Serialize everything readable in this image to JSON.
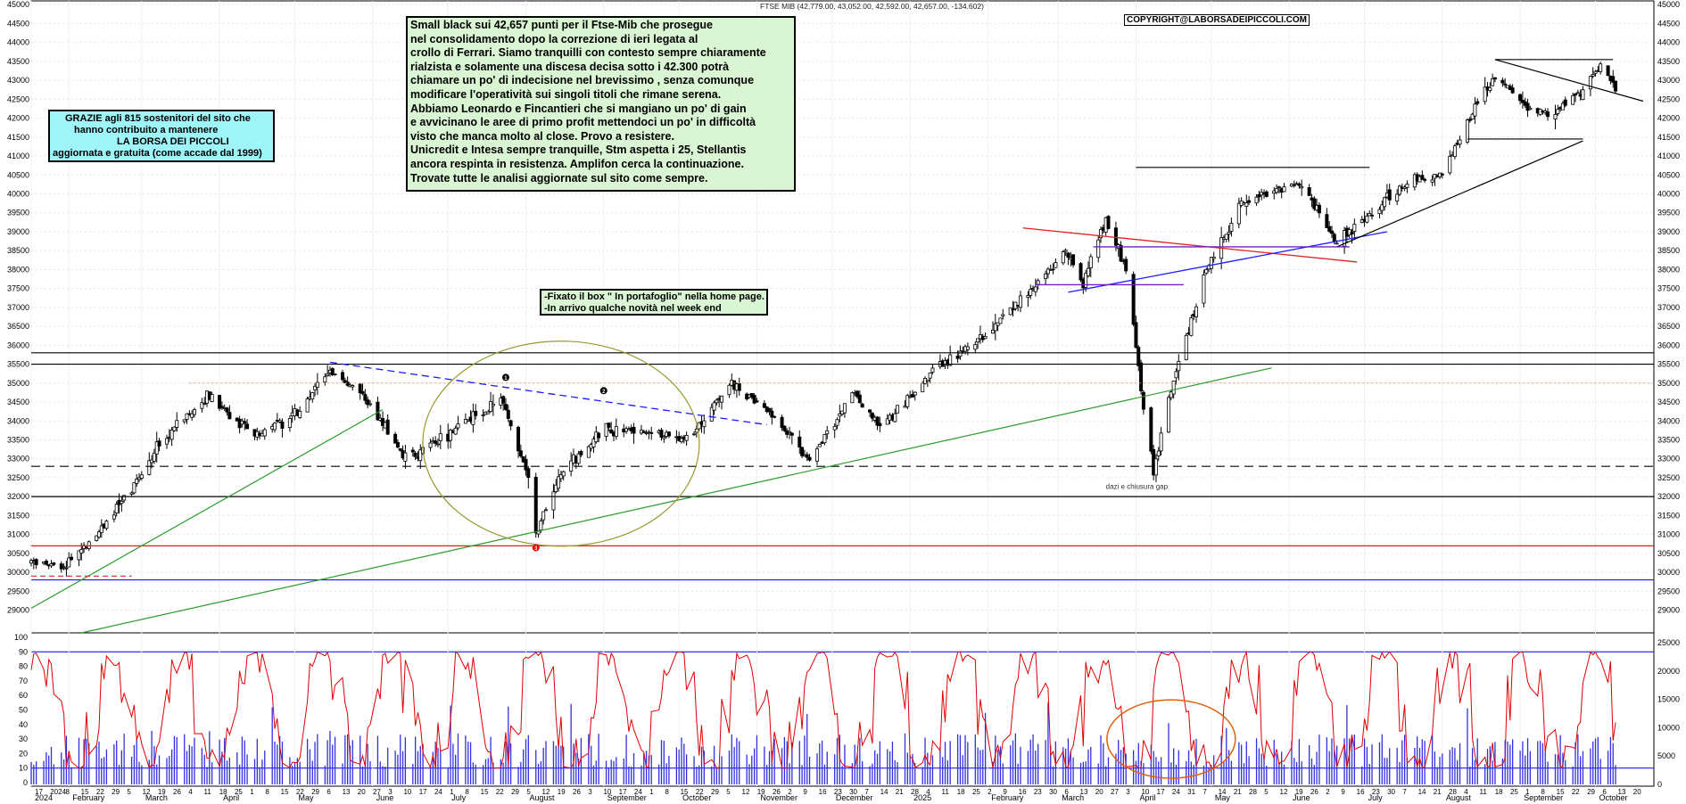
{
  "header": "FTSE MIB (42,779.00, 43,052.00, 42,592.00, 42,657.00, -134.602)",
  "copyright": "COPYRIGHT@LABORSADEIPICCOLI.COM",
  "note_main": [
    "Small black sui 42,657 punti per il Ftse-Mib che prosegue",
    "nel consolidamento dopo la correzione di ieri legata al",
    "crollo di Ferrari. Siamo tranquilli con contesto sempre chiaramente",
    "rialzista e solamente una discesa decisa sotto i 42.300 potrà",
    "chiamare un po' di indecisione nel brevissimo , senza comunque",
    "modificare l'operatività sui singoli titoli che rimane serena.",
    "Abbiamo Leonardo e Fincantieri che si mangiano un po' di gain",
    "e avvicinano le aree di primo profit mettendoci un po' in difficoltà",
    "visto che manca molto al close. Provo a resistere.",
    "Unicredit e Intesa sempre tranquille, Stm aspetta i 25,  Stellantis",
    "ancora respinta in resistenza. Amplifon cerca la continuazione.",
    "Trovate tutte le analisi aggiornate sul sito come sempre."
  ],
  "note_thanks": [
    "GRAZIE agli 815  sostenitori del sito che",
    "hanno contribuito a mantenere",
    "LA BORSA DEI PICCOLI",
    "aggiornata e gratuita (come accade dal 1999)"
  ],
  "note_news": [
    "-Fixato il box \" In portafoglio\" nella home page.",
    "-In arrivo qualche novità nel week end"
  ],
  "annotation_gap": "dazi e chiusura gap",
  "wave_labels": [
    "1",
    "2",
    "3"
  ],
  "colors": {
    "candle": "#000000",
    "red_line": "#e02020",
    "blue_line": "#1a1aff",
    "green_line": "#2a9d2a",
    "oscillator": "#e00000",
    "volume": "#3030e0",
    "ellipse": "#9a9a30",
    "orange_ellipse": "#e06010"
  },
  "chart_data": {
    "type": "candlestick",
    "title": "FTSE MIB",
    "price_axis": {
      "ticks": [
        29000,
        29500,
        30000,
        30500,
        31000,
        31500,
        32000,
        32500,
        33000,
        33500,
        34000,
        34500,
        35000,
        35500,
        36000,
        36500,
        37000,
        37500,
        38000,
        38500,
        39000,
        39500,
        40000,
        40500,
        41000,
        41500,
        42000,
        42500,
        43000,
        43500,
        44000,
        44500,
        45000
      ],
      "ylim": [
        28400,
        45100
      ]
    },
    "oscillator_axis": {
      "ticks": [
        0,
        10,
        20,
        30,
        40,
        50,
        60,
        70,
        80,
        90,
        100
      ],
      "ylim": [
        0,
        100
      ]
    },
    "volume_axis": {
      "ticks": [
        0,
        5000,
        10000,
        15000,
        20000,
        25000
      ],
      "ylim": [
        0,
        25000
      ]
    },
    "x_day_ticks": [
      "17",
      "2024",
      "8",
      "15",
      "22",
      "29",
      "5",
      "12",
      "19",
      "26",
      "4",
      "11",
      "18",
      "25",
      "1",
      "8",
      "15",
      "22",
      "29",
      "6",
      "13",
      "20",
      "27",
      "3",
      "10",
      "17",
      "24",
      "1",
      "8",
      "15",
      "22",
      "29",
      "5",
      "12",
      "19",
      "26",
      "3",
      "10",
      "17",
      "24",
      "1",
      "8",
      "15",
      "22",
      "29",
      "5",
      "12",
      "19",
      "26",
      "2",
      "9",
      "16",
      "23",
      "30",
      "7",
      "14",
      "21",
      "28",
      "4",
      "11",
      "18",
      "25",
      "2",
      "9",
      "16",
      "23",
      "30",
      "6",
      "13",
      "20",
      "27",
      "3",
      "10",
      "17",
      "24",
      "31",
      "7",
      "14",
      "21",
      "28",
      "5",
      "12",
      "19",
      "26",
      "2",
      "9",
      "16",
      "23",
      "30",
      "7",
      "14",
      "21",
      "28",
      "4",
      "11",
      "18",
      "25",
      "1",
      "8",
      "15",
      "22",
      "29",
      "6",
      "13",
      "20"
    ],
    "x_month_labels": [
      "2024",
      "February",
      "March",
      "April",
      "May",
      "June",
      "July",
      "August",
      "September",
      "October",
      "November",
      "December",
      "2025",
      "February",
      "March",
      "April",
      "May",
      "June",
      "July",
      "August",
      "September",
      "October"
    ],
    "price_anchors": [
      {
        "date": "2024-01-17",
        "close": 30300
      },
      {
        "date": "2024-01-29",
        "close": 30100
      },
      {
        "date": "2024-02-12",
        "close": 31000
      },
      {
        "date": "2024-02-26",
        "close": 32200
      },
      {
        "date": "2024-03-08",
        "close": 33400
      },
      {
        "date": "2024-03-27",
        "close": 34700
      },
      {
        "date": "2024-04-15",
        "close": 33600
      },
      {
        "date": "2024-05-02",
        "close": 34200
      },
      {
        "date": "2024-05-15",
        "close": 35400
      },
      {
        "date": "2024-05-31",
        "close": 34400
      },
      {
        "date": "2024-06-14",
        "close": 33000
      },
      {
        "date": "2024-07-05",
        "close": 33800
      },
      {
        "date": "2024-07-22",
        "close": 34600
      },
      {
        "date": "2024-08-02",
        "close": 32600
      },
      {
        "date": "2024-08-05",
        "close": 31000
      },
      {
        "date": "2024-08-16",
        "close": 32700
      },
      {
        "date": "2024-09-02",
        "close": 33800
      },
      {
        "date": "2024-09-20",
        "close": 33700
      },
      {
        "date": "2024-10-04",
        "close": 33500
      },
      {
        "date": "2024-10-21",
        "close": 35000
      },
      {
        "date": "2024-11-08",
        "close": 34100
      },
      {
        "date": "2024-11-22",
        "close": 32900
      },
      {
        "date": "2024-12-09",
        "close": 34800
      },
      {
        "date": "2024-12-20",
        "close": 33800
      },
      {
        "date": "2025-01-10",
        "close": 35300
      },
      {
        "date": "2025-01-28",
        "close": 36100
      },
      {
        "date": "2025-02-14",
        "close": 37200
      },
      {
        "date": "2025-03-04",
        "close": 38500
      },
      {
        "date": "2025-03-11",
        "close": 37600
      },
      {
        "date": "2025-03-20",
        "close": 39300
      },
      {
        "date": "2025-03-28",
        "close": 38000
      },
      {
        "date": "2025-04-04",
        "close": 34400
      },
      {
        "date": "2025-04-08",
        "close": 32700
      },
      {
        "date": "2025-04-14",
        "close": 34600
      },
      {
        "date": "2025-04-28",
        "close": 37800
      },
      {
        "date": "2025-05-13",
        "close": 39800
      },
      {
        "date": "2025-05-23",
        "close": 40000
      },
      {
        "date": "2025-06-05",
        "close": 40300
      },
      {
        "date": "2025-06-20",
        "close": 38700
      },
      {
        "date": "2025-07-03",
        "close": 39500
      },
      {
        "date": "2025-07-18",
        "close": 40300
      },
      {
        "date": "2025-08-01",
        "close": 40500
      },
      {
        "date": "2025-08-11",
        "close": 41900
      },
      {
        "date": "2025-08-22",
        "close": 43100
      },
      {
        "date": "2025-09-05",
        "close": 42200
      },
      {
        "date": "2025-09-12",
        "close": 42100
      },
      {
        "date": "2025-09-26",
        "close": 42700
      },
      {
        "date": "2025-10-03",
        "close": 43400
      },
      {
        "date": "2025-10-09",
        "close": 42657
      }
    ],
    "horizontal_levels": [
      {
        "value": 35500,
        "style": "solid",
        "color": "black"
      },
      {
        "value": 32800,
        "style": "dashed",
        "color": "black"
      },
      {
        "value": 32000,
        "style": "solid",
        "color": "black"
      },
      {
        "value": 30700,
        "style": "solid",
        "color": "red"
      },
      {
        "value": 29800,
        "style": "solid",
        "color": "blue"
      },
      {
        "value": 35000,
        "style": "dotted",
        "color": "red"
      },
      {
        "value": 35800,
        "style": "solid",
        "color": "black"
      }
    ]
  }
}
